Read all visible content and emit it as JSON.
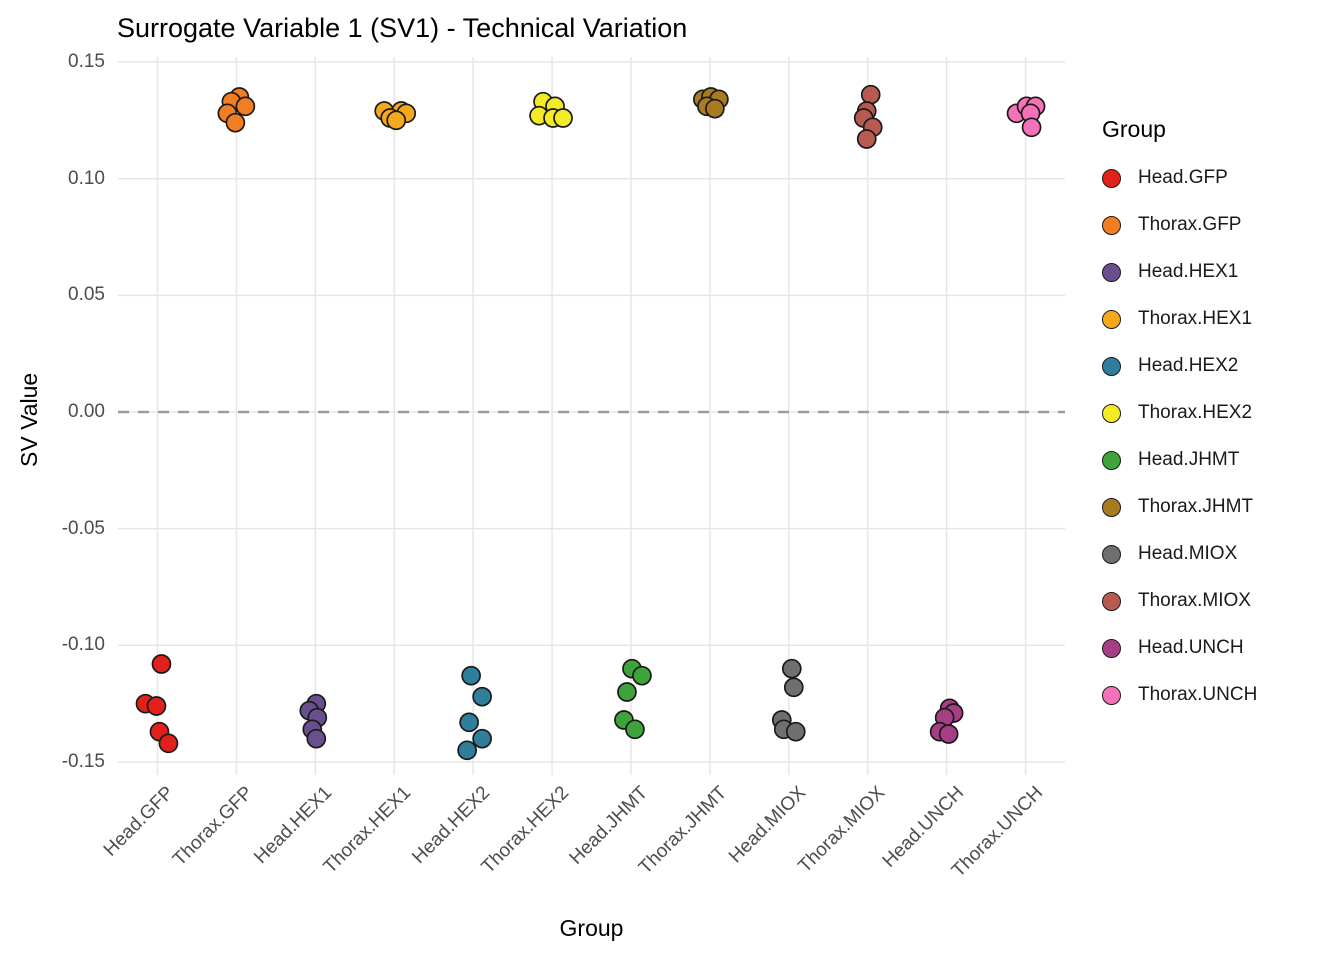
{
  "chart_data": {
    "type": "scatter",
    "title": "Surrogate Variable 1 (SV1) - Technical Variation",
    "xlabel": "Group",
    "ylabel": "SV Value",
    "legend_title": "Group",
    "legend_position": "right",
    "grid": true,
    "ylim": [
      -0.15,
      0.15
    ],
    "yticks": [
      {
        "value": 0.15,
        "label": "0.15"
      },
      {
        "value": 0.1,
        "label": "0.10"
      },
      {
        "value": 0.05,
        "label": "0.05"
      },
      {
        "value": 0.0,
        "label": "0.00"
      },
      {
        "value": -0.05,
        "label": "-0.05"
      },
      {
        "value": -0.1,
        "label": "-0.10"
      },
      {
        "value": -0.15,
        "label": "-0.15"
      }
    ],
    "zero_line": {
      "y": 0,
      "style": "dashed",
      "color": "#9c9c9c"
    },
    "style": {
      "gridline_color": "#e6e6e6",
      "point_stroke": "#1a1a1a",
      "point_radius": 9
    },
    "groups": [
      {
        "name": "Head.GFP",
        "color": "#E3211C",
        "points": [
          {
            "dx": 4,
            "y": -0.108
          },
          {
            "dx": -12,
            "y": -0.125
          },
          {
            "dx": -1,
            "y": -0.126
          },
          {
            "dx": 2,
            "y": -0.137
          },
          {
            "dx": 11,
            "y": -0.142
          }
        ]
      },
      {
        "name": "Thorax.GFP",
        "color": "#F17E22",
        "points": [
          {
            "dx": 3,
            "y": 0.135
          },
          {
            "dx": -5,
            "y": 0.133
          },
          {
            "dx": 9,
            "y": 0.131
          },
          {
            "dx": -9,
            "y": 0.128
          },
          {
            "dx": -1,
            "y": 0.124
          }
        ]
      },
      {
        "name": "Head.HEX1",
        "color": "#6A4F8E",
        "points": [
          {
            "dx": 1,
            "y": -0.125
          },
          {
            "dx": -6,
            "y": -0.128
          },
          {
            "dx": 2,
            "y": -0.131
          },
          {
            "dx": -3,
            "y": -0.136
          },
          {
            "dx": 1,
            "y": -0.14
          }
        ]
      },
      {
        "name": "Thorax.HEX1",
        "color": "#F6A81C",
        "points": [
          {
            "dx": -10,
            "y": 0.129
          },
          {
            "dx": 7,
            "y": 0.129
          },
          {
            "dx": 12,
            "y": 0.128
          },
          {
            "dx": -4,
            "y": 0.126
          },
          {
            "dx": 2,
            "y": 0.125
          }
        ]
      },
      {
        "name": "Head.HEX2",
        "color": "#2E7E9C",
        "points": [
          {
            "dx": -2,
            "y": -0.113
          },
          {
            "dx": 9,
            "y": -0.122
          },
          {
            "dx": -4,
            "y": -0.133
          },
          {
            "dx": 9,
            "y": -0.14
          },
          {
            "dx": -6,
            "y": -0.145
          }
        ]
      },
      {
        "name": "Thorax.HEX2",
        "color": "#F3EB25",
        "points": [
          {
            "dx": -9,
            "y": 0.133
          },
          {
            "dx": 3,
            "y": 0.131
          },
          {
            "dx": -13,
            "y": 0.127
          },
          {
            "dx": 1,
            "y": 0.126
          },
          {
            "dx": 11,
            "y": 0.126
          }
        ]
      },
      {
        "name": "Head.JHMT",
        "color": "#3FA33C",
        "points": [
          {
            "dx": 1,
            "y": -0.11
          },
          {
            "dx": 11,
            "y": -0.113
          },
          {
            "dx": -4,
            "y": -0.12
          },
          {
            "dx": -7,
            "y": -0.132
          },
          {
            "dx": 4,
            "y": -0.136
          }
        ]
      },
      {
        "name": "Thorax.JHMT",
        "color": "#A87B21",
        "points": [
          {
            "dx": -7,
            "y": 0.134
          },
          {
            "dx": 1,
            "y": 0.135
          },
          {
            "dx": 9,
            "y": 0.134
          },
          {
            "dx": -3,
            "y": 0.131
          },
          {
            "dx": 5,
            "y": 0.13
          }
        ]
      },
      {
        "name": "Head.MIOX",
        "color": "#6F6F6F",
        "points": [
          {
            "dx": 3,
            "y": -0.11
          },
          {
            "dx": 5,
            "y": -0.118
          },
          {
            "dx": -7,
            "y": -0.132
          },
          {
            "dx": -5,
            "y": -0.136
          },
          {
            "dx": 7,
            "y": -0.137
          }
        ]
      },
      {
        "name": "Thorax.MIOX",
        "color": "#B75B50",
        "points": [
          {
            "dx": 3,
            "y": 0.136
          },
          {
            "dx": -1,
            "y": 0.129
          },
          {
            "dx": -4,
            "y": 0.126
          },
          {
            "dx": 5,
            "y": 0.122
          },
          {
            "dx": -1,
            "y": 0.117
          }
        ]
      },
      {
        "name": "Head.UNCH",
        "color": "#A63E85",
        "points": [
          {
            "dx": 3,
            "y": -0.127
          },
          {
            "dx": 7,
            "y": -0.129
          },
          {
            "dx": -2,
            "y": -0.131
          },
          {
            "dx": -7,
            "y": -0.137
          },
          {
            "dx": 2,
            "y": -0.138
          }
        ]
      },
      {
        "name": "Thorax.UNCH",
        "color": "#F672B8",
        "points": [
          {
            "dx": -9,
            "y": 0.128
          },
          {
            "dx": 1,
            "y": 0.131
          },
          {
            "dx": 10,
            "y": 0.131
          },
          {
            "dx": 5,
            "y": 0.128
          },
          {
            "dx": 6,
            "y": 0.122
          }
        ]
      }
    ]
  }
}
